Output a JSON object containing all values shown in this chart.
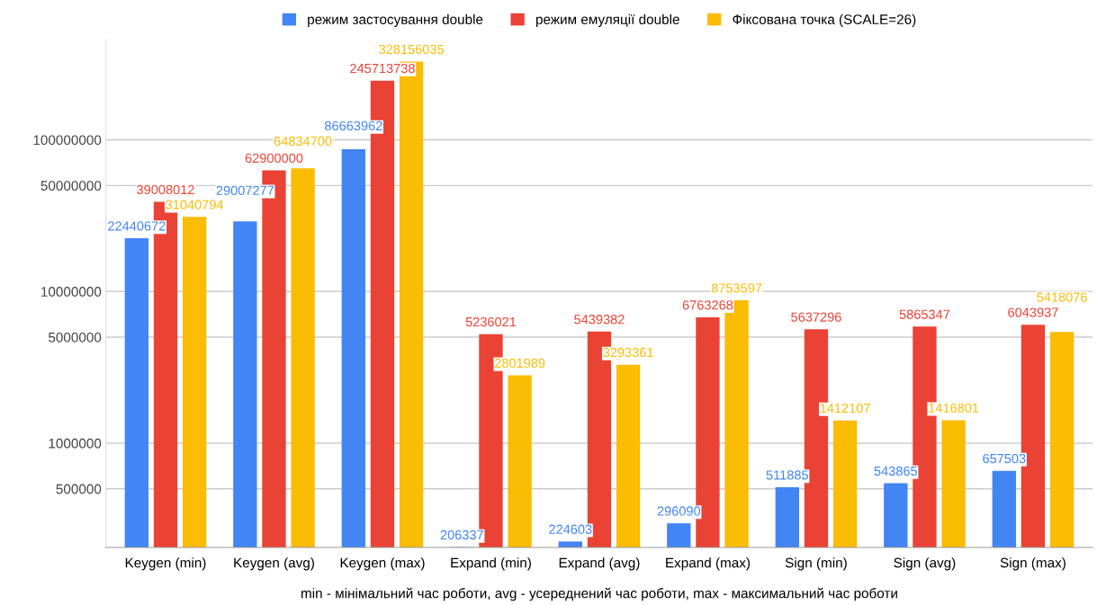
{
  "chart_data": {
    "type": "bar",
    "xlabel": "min - мінімальний час роботи, avg - усереднений час роботи, max - максимальний час роботи",
    "categories": [
      "Keygen (min)",
      "Keygen (avg)",
      "Keygen (max)",
      "Expand (min)",
      "Expand (avg)",
      "Expand (max)",
      "Sign (min)",
      "Sign (avg)",
      "Sign (max)"
    ],
    "series": [
      {
        "name": "режим застосування double",
        "color": "#4285f4",
        "values": [
          22440672,
          29007277,
          86663962,
          206337,
          224603,
          296090,
          511885,
          543865,
          657503
        ]
      },
      {
        "name": "режим емуляції double",
        "color": "#ea4335",
        "values": [
          39008012,
          62900000,
          245713738,
          5236021,
          5439382,
          6763268,
          5637296,
          5865347,
          6043937
        ]
      },
      {
        "name": "Фіксована точка (SCALE=26)",
        "color": "#fbbc04",
        "values": [
          31040794,
          64834700,
          328156035,
          2801989,
          3293361,
          8753597,
          1412107,
          1416801,
          5418076
        ]
      }
    ],
    "log": "y",
    "ylim": [
      205000,
      460000000
    ],
    "yticks": [
      500000,
      1000000,
      5000000,
      10000000,
      50000000,
      100000000
    ],
    "grid": "y",
    "legend": "top",
    "data_labels": true
  }
}
